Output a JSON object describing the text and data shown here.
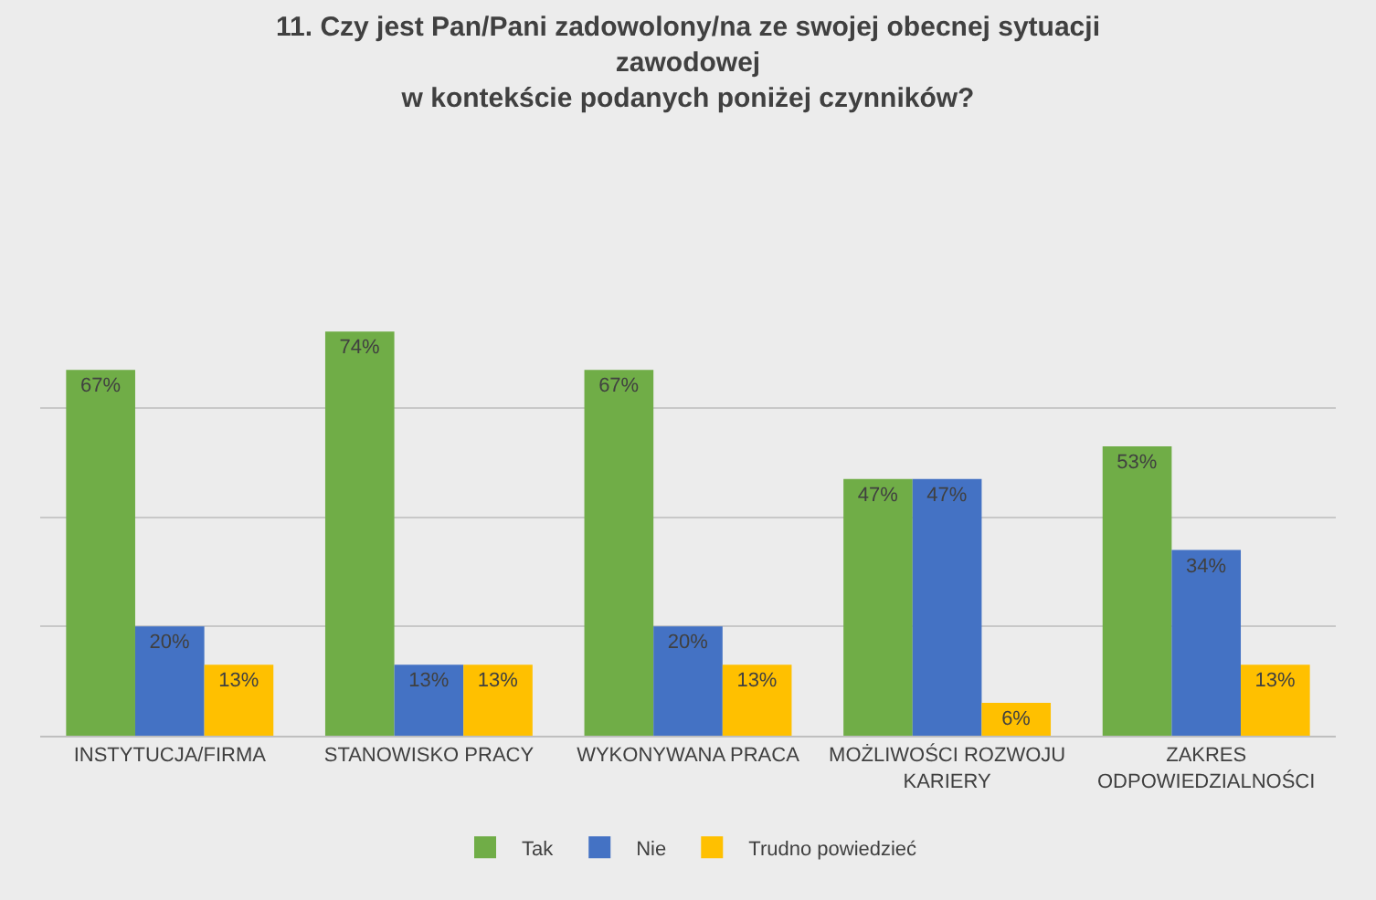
{
  "chart_data": {
    "type": "bar",
    "title": "11. Czy jest Pan/Pani zadowolony/na ze swojej obecnej sytuacji\nzawodowej\nw kontekście podanych poniżej czynników?",
    "categories": [
      "INSTYTUCJA/FIRMA",
      "STANOWISKO PRACY",
      "WYKONYWANA PRACA",
      "MOŻLIWOŚCI ROZWOJU KARIERY",
      "ZAKRES ODPOWIEDZIALNOŚCI"
    ],
    "series": [
      {
        "name": "Tak",
        "color": "#70ad47",
        "values": [
          67,
          74,
          67,
          47,
          53
        ],
        "value_labels": [
          "67%",
          "74%",
          "67%",
          "47%",
          "53%"
        ]
      },
      {
        "name": "Nie",
        "color": "#4472c4",
        "values": [
          20,
          13,
          20,
          47,
          34
        ],
        "value_labels": [
          "20%",
          "13%",
          "20%",
          "47%",
          "34%"
        ]
      },
      {
        "name": "Trudno powiedzieć",
        "color": "#ffc000",
        "values": [
          13,
          13,
          13,
          6,
          13
        ],
        "value_labels": [
          "13%",
          "13%",
          "13%",
          "6%",
          "13%"
        ]
      }
    ],
    "yticks": [
      {
        "value": 0,
        "label": null
      },
      {
        "value": 20,
        "label": null
      },
      {
        "value": 40,
        "label": null
      },
      {
        "value": 60,
        "label": null
      }
    ],
    "grid": "y",
    "legend": "bottom",
    "tick_labels": "x"
  }
}
